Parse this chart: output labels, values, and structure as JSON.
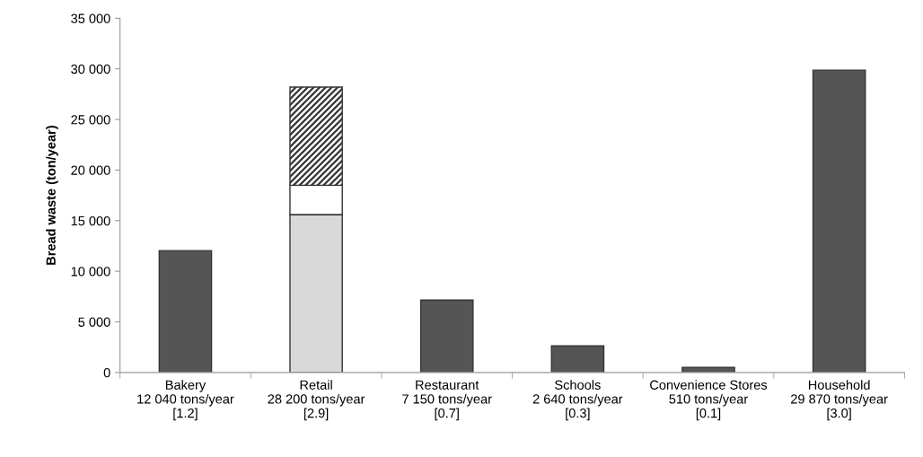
{
  "chart_data": {
    "type": "bar",
    "stacked": true,
    "ylabel": "Bread waste (ton/year)",
    "categories": [
      "Bakery\n12 040 tons/year\n[1.2]",
      "Retail\n28 200 tons/year\n[2.9]",
      "Restaurant\n7 150 tons/year\n[0.7]",
      "Schools\n2 640 tons/year\n[0.3]",
      "Convenience Stores\n510 tons/year\n[0.1]",
      "Household\n29 870 tons/year\n[3.0]"
    ],
    "series": [
      {
        "colors": [
          "#555555",
          "#d9d9d9",
          "#555555",
          "#555555",
          "#555555",
          "#555555"
        ],
        "values": [
          12040,
          15600,
          7150,
          2640,
          510,
          29870
        ]
      },
      {
        "color": "#ffffff",
        "values": [
          null,
          2900,
          null,
          null,
          null,
          null
        ]
      },
      {
        "color": "#333333",
        "values": [
          null,
          9700,
          null,
          null,
          null,
          null
        ]
      }
    ],
    "ylim": [
      0,
      35000
    ],
    "yticks": [
      {
        "value": 0,
        "label": "0"
      },
      {
        "value": 5000,
        "label": "5 000"
      },
      {
        "value": 10000,
        "label": "10 000"
      },
      {
        "value": 15000,
        "label": "15 000"
      },
      {
        "value": 20000,
        "label": "20 000"
      },
      {
        "value": 25000,
        "label": "25 000"
      },
      {
        "value": 30000,
        "label": "30 000"
      },
      {
        "value": 35000,
        "label": "35 000"
      }
    ],
    "grid": false
  }
}
